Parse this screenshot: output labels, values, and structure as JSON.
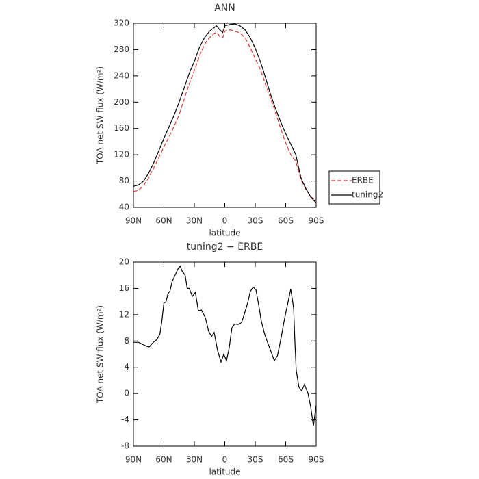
{
  "chart_data": [
    {
      "type": "line",
      "title": "ANN",
      "x_label": "latitude",
      "y_label": "TOA net SW flux (W/m²)",
      "xlim": [
        90,
        -90
      ],
      "xticks": [
        {
          "value": 90,
          "label": "90N"
        },
        {
          "value": 60,
          "label": "60N"
        },
        {
          "value": 30,
          "label": "30N"
        },
        0,
        {
          "value": -30,
          "label": "30S"
        },
        {
          "value": -60,
          "label": "60S"
        },
        {
          "value": -90,
          "label": "90S"
        }
      ],
      "ylim": [
        40,
        320
      ],
      "yticks": [
        40,
        80,
        120,
        160,
        200,
        240,
        280,
        320
      ],
      "legend": "right",
      "series": [
        {
          "name": "ERBE",
          "color": "#e8322d",
          "style": "dashed",
          "x": [
            90,
            85,
            80,
            75,
            70,
            65,
            60,
            55,
            50,
            45,
            40,
            35,
            30,
            25,
            20,
            15,
            10,
            8,
            5,
            2,
            0,
            -5,
            -10,
            -15,
            -20,
            -25,
            -30,
            -35,
            -40,
            -45,
            -50,
            -55,
            -60,
            -65,
            -70,
            -75,
            -80,
            -85,
            -90
          ],
          "values": [
            64,
            66,
            73,
            85,
            100,
            116,
            132,
            147,
            163,
            181,
            205,
            228,
            248,
            270,
            288,
            298,
            305,
            306,
            300,
            298,
            308,
            310,
            308,
            305,
            298,
            283,
            266,
            250,
            228,
            206,
            184,
            160,
            138,
            120,
            110,
            82,
            67,
            56,
            50
          ]
        },
        {
          "name": "tuning2",
          "color": "#000000",
          "style": "solid",
          "x": [
            90,
            85,
            80,
            75,
            70,
            65,
            60,
            55,
            50,
            45,
            40,
            35,
            30,
            25,
            20,
            15,
            10,
            8,
            5,
            2,
            0,
            -5,
            -10,
            -15,
            -20,
            -25,
            -30,
            -35,
            -40,
            -45,
            -50,
            -55,
            -60,
            -65,
            -70,
            -75,
            -80,
            -85,
            -90
          ],
          "values": [
            72,
            74,
            80,
            92,
            108,
            126,
            145,
            162,
            180,
            200,
            222,
            244,
            262,
            283,
            298,
            308,
            314,
            316,
            310,
            306,
            316,
            318,
            319,
            316,
            310,
            298,
            282,
            262,
            238,
            212,
            190,
            170,
            152,
            136,
            120,
            85,
            68,
            55,
            47
          ]
        }
      ]
    },
    {
      "type": "line",
      "title": "tuning2 − ERBE",
      "x_label": "latitude",
      "y_label": "TOA net SW flux (W/m²)",
      "xlim": [
        90,
        -90
      ],
      "xticks": [
        {
          "value": 90,
          "label": "90N"
        },
        {
          "value": 60,
          "label": "60N"
        },
        {
          "value": 30,
          "label": "30N"
        },
        0,
        {
          "value": -30,
          "label": "30S"
        },
        {
          "value": -60,
          "label": "60S"
        },
        {
          "value": -90,
          "label": "90S"
        }
      ],
      "ylim": [
        -8,
        20
      ],
      "yticks": [
        -8,
        -4,
        0,
        4,
        8,
        12,
        16,
        20
      ],
      "series": [
        {
          "color": "#000000",
          "style": "solid",
          "x": [
            90,
            85,
            77,
            74.5,
            70.4,
            67,
            64,
            62,
            60,
            58,
            56,
            54,
            52,
            49,
            46,
            44,
            42,
            39,
            37,
            35,
            32,
            29,
            26,
            23,
            19,
            16,
            13,
            10.5,
            7,
            3.7,
            1,
            -1.7,
            -4.4,
            -7,
            -9.8,
            -13,
            -16.5,
            -19,
            -22.6,
            -25,
            -28,
            -30.7,
            -33.4,
            -36,
            -39.4,
            -42.8,
            -46,
            -48.8,
            -52,
            -55.6,
            -59,
            -62.4,
            -65,
            -67.8,
            -69,
            -70.4,
            -73,
            -75.8,
            -78.5,
            -82,
            -84.6,
            -87.3,
            -90
          ],
          "values": [
            7.8,
            7.8,
            7.2,
            7.1,
            7.8,
            8.2,
            9,
            11,
            13.8,
            13.9,
            15.2,
            15.6,
            17,
            18,
            19,
            19.4,
            18.6,
            18,
            16,
            16,
            14.8,
            15.4,
            12.6,
            12.7,
            11.5,
            9.5,
            8.7,
            9.3,
            6.5,
            4.8,
            6,
            5,
            7,
            10,
            10.6,
            10.5,
            10.8,
            12,
            13.8,
            15.5,
            16.2,
            15.8,
            13.5,
            11,
            9,
            7.5,
            6.2,
            5,
            5.8,
            8.6,
            11.5,
            14,
            15.9,
            13,
            8,
            3.5,
            1,
            0.4,
            1.4,
            0,
            -2,
            -4.9,
            -1.8
          ]
        }
      ]
    }
  ]
}
